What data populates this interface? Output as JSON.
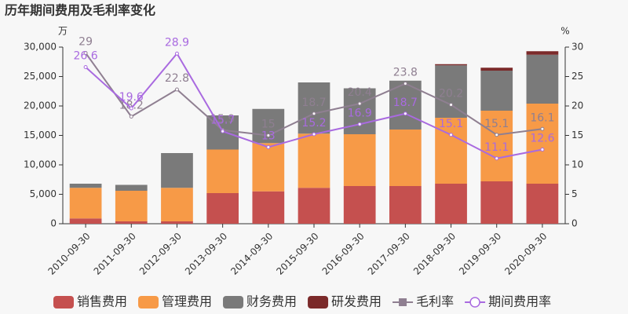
{
  "chart_data": {
    "type": "bar",
    "stacked": true,
    "title": "历年期间费用及毛利率变化",
    "y_unit": "万",
    "y2_unit": "%",
    "categories": [
      "2010-09-30",
      "2011-09-30",
      "2012-09-30",
      "2013-09-30",
      "2014-09-30",
      "2015-09-30",
      "2016-09-30",
      "2017-09-30",
      "2018-09-30",
      "2019-09-30",
      "2020-09-30"
    ],
    "series": [
      {
        "name": "销售费用",
        "color": "#c5504f",
        "values": [
          900,
          400,
          400,
          5200,
          5500,
          6100,
          6400,
          6400,
          6800,
          7200,
          6800
        ]
      },
      {
        "name": "管理费用",
        "color": "#f79a47",
        "values": [
          5200,
          5200,
          5700,
          7400,
          8200,
          9200,
          8800,
          9600,
          11200,
          12000,
          13600
        ]
      },
      {
        "name": "财务费用",
        "color": "#7a7a7a",
        "values": [
          700,
          1000,
          5900,
          5800,
          5800,
          8700,
          7800,
          8300,
          8900,
          6800,
          8300
        ]
      },
      {
        "name": "研发费用",
        "color": "#7b2a2a",
        "values": [
          0,
          0,
          0,
          0,
          0,
          0,
          0,
          0,
          200,
          500,
          600
        ]
      },
      {
        "name": "毛利率",
        "type": "line",
        "axis": "y2",
        "color": "#8f7f91",
        "values": [
          29,
          18.2,
          22.8,
          15.9,
          15,
          18.7,
          20.4,
          23.8,
          20.2,
          15.1,
          16.1
        ]
      },
      {
        "name": "期间费用率",
        "type": "line",
        "axis": "y2",
        "color": "#a96ae0",
        "values": [
          26.6,
          19.6,
          28.9,
          15.7,
          13,
          15.2,
          16.9,
          18.7,
          15.1,
          11.1,
          12.6
        ]
      }
    ],
    "ylim": [
      0,
      30000
    ],
    "yticks": [
      0,
      {
        "value": 5000,
        "label": "5,000"
      },
      {
        "value": 10000,
        "label": "10,000"
      },
      {
        "value": 15000,
        "label": "15,000"
      },
      {
        "value": 20000,
        "label": "20,000"
      },
      {
        "value": 25000,
        "label": "25,000"
      },
      {
        "value": 30000,
        "label": "30,000"
      }
    ],
    "y2lim": [
      0,
      30
    ],
    "y2ticks": [
      0,
      5,
      10,
      15,
      20,
      25,
      30
    ],
    "legend": "bottom"
  }
}
